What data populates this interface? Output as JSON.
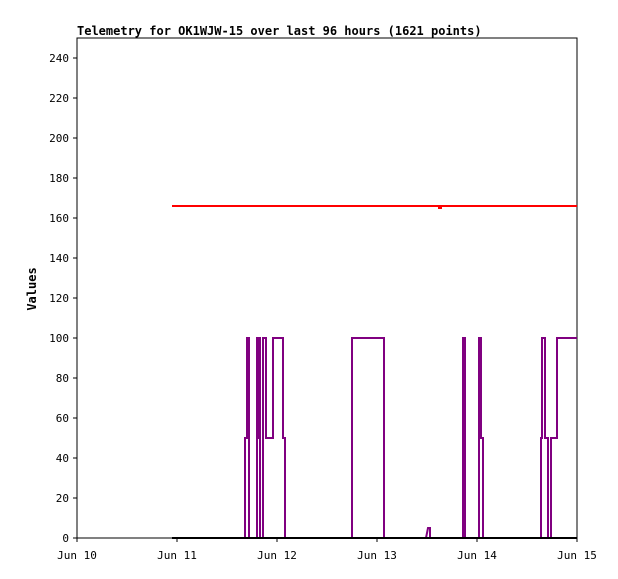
{
  "chart_data": {
    "type": "line",
    "title": "Telemetry for OK1WJW-15 over last 96 hours (1621 points)",
    "xlabel": "",
    "ylabel": "Values",
    "x_ticks": [
      "Jun 10",
      "Jun 11",
      "Jun 12",
      "Jun 13",
      "Jun 14",
      "Jun 15"
    ],
    "x_range_days": [
      10,
      15
    ],
    "ylim": [
      0,
      250
    ],
    "y_ticks": [
      0,
      20,
      40,
      60,
      80,
      100,
      120,
      140,
      160,
      180,
      200,
      220,
      240
    ],
    "grid": false,
    "series": [
      {
        "color": "#ff0000",
        "x": [
          10.95,
          13.62,
          13.62,
          13.64,
          13.64,
          15.0
        ],
        "y": [
          166,
          166,
          165,
          165,
          166,
          166
        ]
      },
      {
        "color": "#800080",
        "x": [
          10.95,
          11.68,
          11.68,
          11.7,
          11.7,
          11.72,
          11.72,
          11.8,
          11.8,
          11.81,
          11.81,
          11.82,
          11.82,
          11.83,
          11.83,
          11.86,
          11.86,
          11.89,
          11.89,
          11.96,
          11.96,
          12.06,
          12.06,
          12.08,
          12.08,
          12.75,
          12.75,
          13.07,
          13.07,
          13.49,
          13.51,
          13.53,
          13.53,
          13.86,
          13.86,
          13.88,
          13.88,
          14.02,
          14.02,
          14.04,
          14.04,
          14.06,
          14.06,
          14.64,
          14.64,
          14.65,
          14.65,
          14.68,
          14.68,
          14.71,
          14.71,
          14.74,
          14.74,
          14.8,
          14.8,
          15.0
        ],
        "y": [
          0,
          0,
          50,
          50,
          100,
          100,
          0,
          0,
          100,
          100,
          50,
          50,
          100,
          100,
          0,
          0,
          100,
          100,
          50,
          50,
          100,
          100,
          50,
          50,
          0,
          0,
          100,
          100,
          0,
          0,
          5,
          5,
          0,
          0,
          100,
          100,
          0,
          0,
          100,
          100,
          50,
          50,
          0,
          0,
          50,
          50,
          100,
          100,
          50,
          50,
          0,
          0,
          50,
          50,
          100,
          100
        ]
      },
      {
        "color": "#000000",
        "x": [
          10.95,
          15.0
        ],
        "y": [
          0,
          0
        ]
      }
    ]
  }
}
